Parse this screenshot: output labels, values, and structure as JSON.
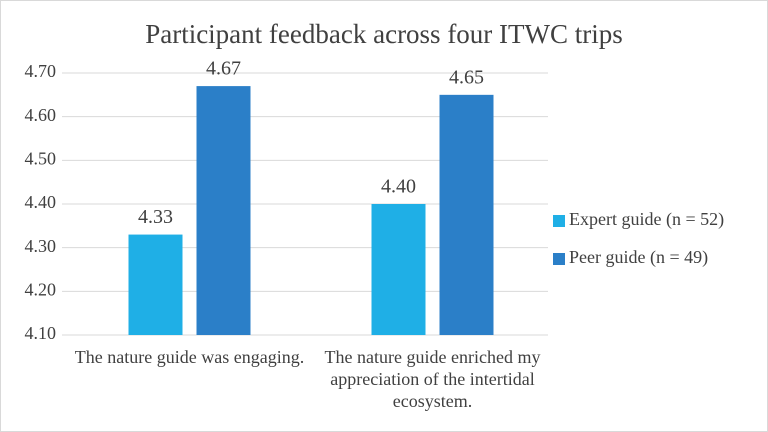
{
  "chart_data": {
    "type": "bar",
    "title": "Participant feedback across four ITWC trips",
    "categories": [
      "The nature guide was engaging.",
      "The nature guide enriched my appreciation of the intertidal ecosystem."
    ],
    "series": [
      {
        "name": "Expert guide (n = 52)",
        "color": "#1fafe6",
        "values": [
          4.33,
          4.4
        ],
        "value_labels": [
          "4.33",
          "4.40"
        ]
      },
      {
        "name": "Peer guide (n = 49)",
        "color": "#2b7fc8",
        "values": [
          4.67,
          4.65
        ],
        "value_labels": [
          "4.67",
          "4.65"
        ]
      }
    ],
    "ylim": [
      4.1,
      4.7
    ],
    "yticks": [
      {
        "value": 4.1,
        "label": "4.10"
      },
      {
        "value": 4.2,
        "label": "4.20"
      },
      {
        "value": 4.3,
        "label": "4.30"
      },
      {
        "value": 4.4,
        "label": "4.40"
      },
      {
        "value": 4.5,
        "label": "4.50"
      },
      {
        "value": 4.6,
        "label": "4.60"
      },
      {
        "value": 4.7,
        "label": "4.70"
      }
    ],
    "grid": true,
    "legend": "right"
  }
}
